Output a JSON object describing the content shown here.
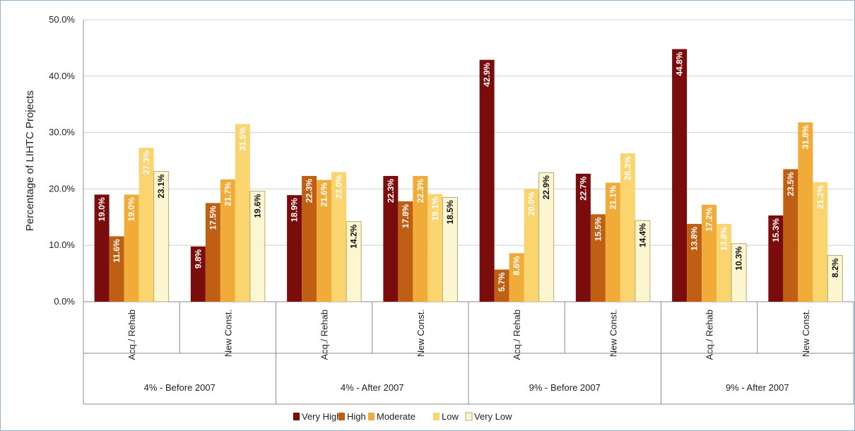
{
  "chart_data": {
    "type": "bar",
    "title": "",
    "ylabel": "Percentage of LIHTC Projects",
    "ylim": [
      0,
      50
    ],
    "yticks": [
      0,
      10,
      20,
      30,
      40,
      50
    ],
    "ytick_labels": [
      "0.0%",
      "10.0%",
      "20.0%",
      "30.0%",
      "40.0%",
      "50.0%"
    ],
    "grid": true,
    "legend_position": "bottom",
    "groups": [
      {
        "label": "4% - Before 2007",
        "categories": [
          "Acq./ Rehab",
          "New Const."
        ]
      },
      {
        "label": "4% - After 2007",
        "categories": [
          "Acq./ Rehab",
          "New Const."
        ]
      },
      {
        "label": "9% - Before 2007",
        "categories": [
          "Acq./ Rehab",
          "New Const."
        ]
      },
      {
        "label": "9% - After 2007",
        "categories": [
          "Acq./ Rehab",
          "New Const."
        ]
      }
    ],
    "series": [
      {
        "name": "Very High",
        "color": "#7a0c0c",
        "label_color": "#ffffff",
        "values": [
          19.0,
          9.8,
          18.9,
          22.3,
          42.9,
          22.7,
          44.8,
          15.3
        ],
        "labels": [
          "19.0%",
          "9.8%",
          "18.9%",
          "22.3%",
          "42.9%",
          "22.7%",
          "44.8%",
          "15.3%"
        ]
      },
      {
        "name": "High",
        "color": "#bf5f14",
        "label_color": "#ffffff",
        "values": [
          11.6,
          17.5,
          22.3,
          17.8,
          5.7,
          15.5,
          13.8,
          23.5
        ],
        "labels": [
          "11.6%",
          "17.5%",
          "22.3%",
          "17.8%",
          "5.7%",
          "15.5%",
          "13.8%",
          "23.5%"
        ]
      },
      {
        "name": "Moderate",
        "color": "#f0ab38",
        "label_color": "#ffffff",
        "values": [
          19.0,
          21.7,
          21.6,
          22.3,
          8.6,
          21.1,
          17.2,
          31.8
        ],
        "labels": [
          "19.0%",
          "21.7%",
          "21.6%",
          "22.3%",
          "8.6%",
          "21.1%",
          "17.2%",
          "31.8%"
        ]
      },
      {
        "name": "Low",
        "color": "#fad46e",
        "label_color": "#ffffff",
        "values": [
          27.3,
          31.5,
          23.0,
          19.1,
          20.0,
          26.3,
          13.8,
          21.2
        ],
        "labels": [
          "27.3%",
          "31.5%",
          "23.0%",
          "19.1%",
          "20.0%",
          "26.3%",
          "13.8%",
          "21.2%"
        ]
      },
      {
        "name": "Very Low",
        "color": "#fdf6d0",
        "label_color": "#111111",
        "values": [
          23.1,
          19.6,
          14.2,
          18.5,
          22.9,
          14.4,
          10.3,
          8.2
        ],
        "labels": [
          "23.1%",
          "19.6%",
          "14.2%",
          "18.5%",
          "22.9%",
          "14.4%",
          "10.3%",
          "8.2%"
        ]
      }
    ]
  }
}
